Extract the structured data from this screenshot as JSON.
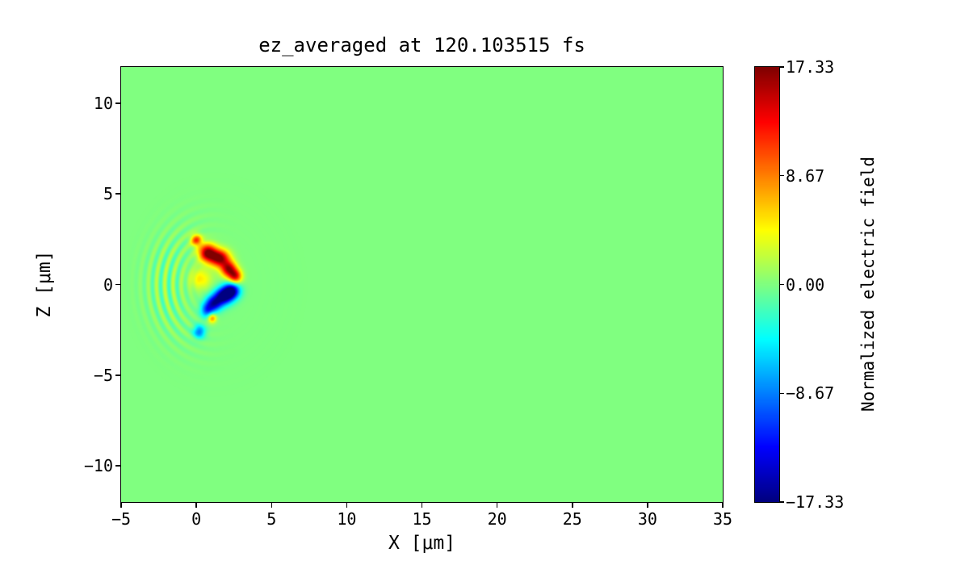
{
  "chart_data": {
    "type": "heatmap",
    "title": "ez_averaged at 120.103515 fs",
    "xlabel": "X [μm]",
    "ylabel": "Z [μm]",
    "xlim": [
      -5,
      35
    ],
    "zlim": [
      -12,
      12
    ],
    "x_ticks": {
      "values": [
        -5,
        0,
        5,
        10,
        15,
        20,
        25,
        30,
        35
      ],
      "labels": [
        "−5",
        "0",
        "5",
        "10",
        "15",
        "20",
        "25",
        "30",
        "35"
      ]
    },
    "z_ticks": {
      "values": [
        10,
        5,
        0,
        -5,
        -10
      ],
      "labels": [
        "10",
        "5",
        "0",
        "−5",
        "−10"
      ]
    },
    "colorbar": {
      "label": "Normalized electric field",
      "colormap": "jet",
      "vmin": -17.33,
      "vmax": 17.33,
      "ticks": {
        "values": [
          17.33,
          8.67,
          0,
          -8.67,
          -17.33
        ],
        "labels": [
          "17.33",
          "8.67",
          "0.00",
          "−8.67",
          "−17.33"
        ]
      }
    },
    "field": {
      "background_value": 0,
      "blobs": [
        {
          "x": 0.0,
          "z": 2.45,
          "sx": 0.25,
          "sz": 0.22,
          "amp": 11
        },
        {
          "x": 0.75,
          "z": 1.75,
          "sx": 0.4,
          "sz": 0.33,
          "amp": 17
        },
        {
          "x": 1.55,
          "z": 1.45,
          "sx": 0.45,
          "sz": 0.33,
          "amp": 17
        },
        {
          "x": 2.15,
          "z": 0.85,
          "sx": 0.35,
          "sz": 0.3,
          "amp": 15
        },
        {
          "x": 2.6,
          "z": 0.45,
          "sx": 0.3,
          "sz": 0.27,
          "amp": 13
        },
        {
          "x": 0.3,
          "z": 0.3,
          "sx": 0.5,
          "sz": 0.4,
          "amp": 5
        },
        {
          "x": 2.35,
          "z": -0.35,
          "sx": 0.38,
          "sz": 0.3,
          "amp": -17
        },
        {
          "x": 1.8,
          "z": -0.65,
          "sx": 0.42,
          "sz": 0.32,
          "amp": -17
        },
        {
          "x": 1.15,
          "z": -1.05,
          "sx": 0.38,
          "sz": 0.3,
          "amp": -14
        },
        {
          "x": 0.7,
          "z": -1.45,
          "sx": 0.3,
          "sz": 0.27,
          "amp": -9
        },
        {
          "x": 1.05,
          "z": -1.85,
          "sx": 0.2,
          "sz": 0.18,
          "amp": 9
        },
        {
          "x": 0.2,
          "z": -2.6,
          "sx": 0.28,
          "sz": 0.25,
          "amp": -9
        }
      ],
      "ripples": {
        "cx": 1.2,
        "cz": 0.0,
        "wavelength": 0.55,
        "amp": 2.6,
        "r_peak": 3.2,
        "r_sigma": 1.4,
        "angle_center_deg": 180,
        "angle_sigma_deg": 55
      }
    }
  }
}
